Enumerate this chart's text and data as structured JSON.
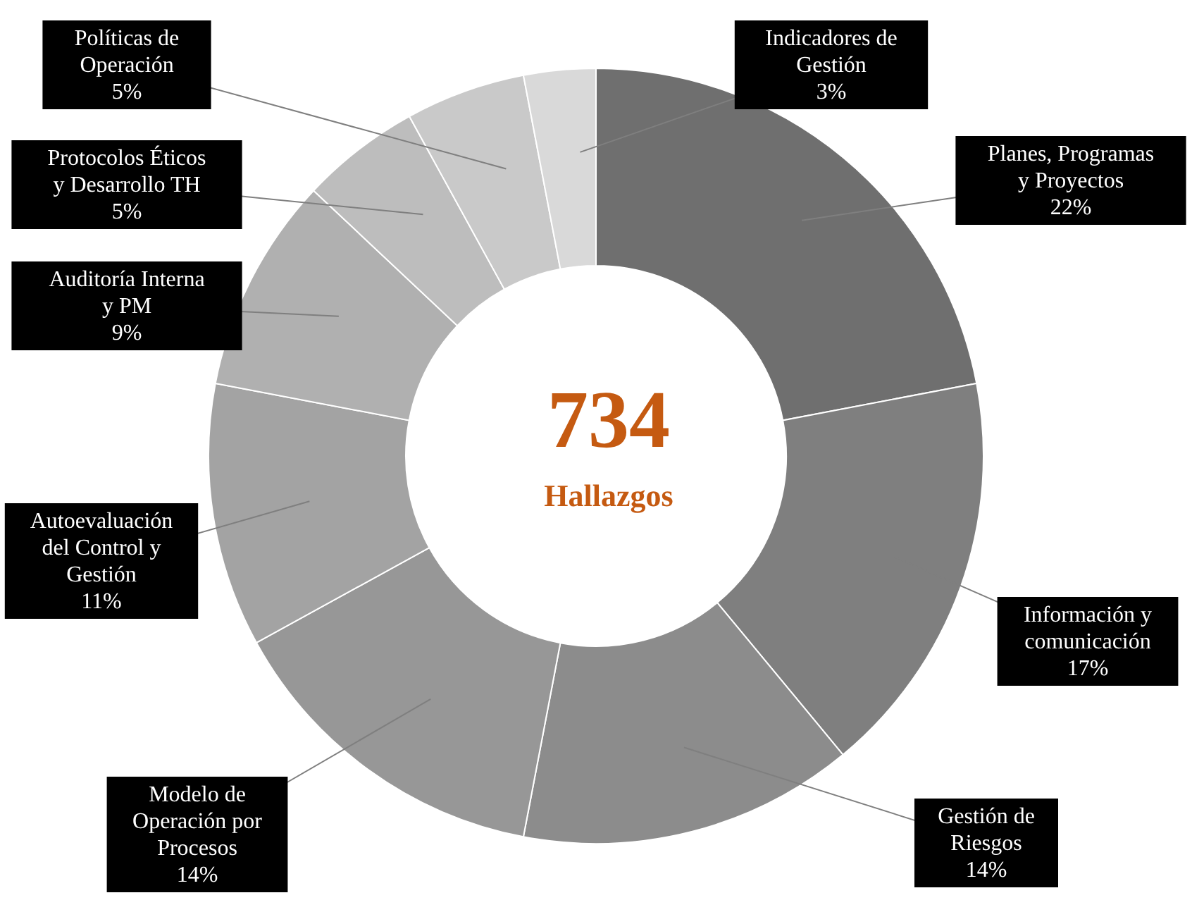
{
  "chart_data": {
    "type": "donut",
    "categories": [
      "Planes, Programas y Proyectos",
      "Información y comunicación",
      "Gestión de Riesgos",
      "Modelo de Operación por Procesos",
      "Autoevaluación del Control y Gestión",
      "Auditoría Interna y PM",
      "Protocolos Éticos y Desarrollo TH",
      "Políticas de Operación",
      "Indicadores de Gestión"
    ],
    "values": [
      22,
      17,
      14,
      14,
      11,
      9,
      5,
      5,
      3
    ],
    "value_labels": [
      "22%",
      "17%",
      "14%",
      "14%",
      "11%",
      "9%",
      "5%",
      "5%",
      "3%"
    ],
    "colors": [
      "#6f6f6f",
      "#7f7f7f",
      "#8c8c8c",
      "#979797",
      "#a3a3a3",
      "#b0b0b0",
      "#bdbdbd",
      "#c9c9c9",
      "#d9d9d9"
    ],
    "annotations": [
      "734",
      "Hallazgos"
    ]
  }
}
